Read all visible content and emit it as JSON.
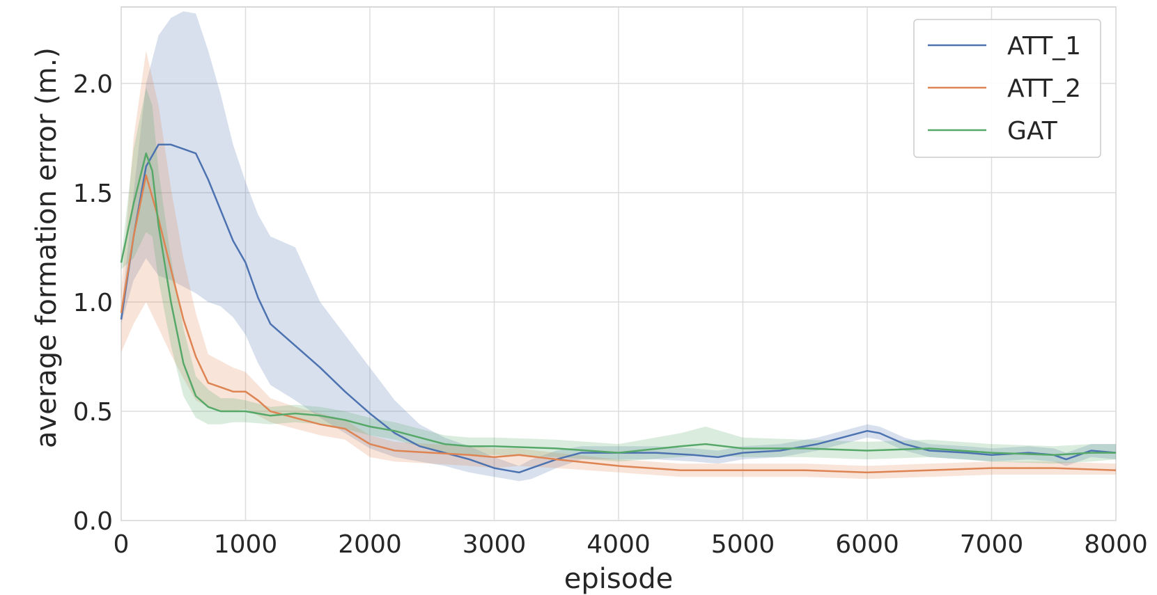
{
  "chart_data": {
    "type": "line",
    "title": "",
    "xlabel": "episode",
    "ylabel": "average formation error  (m.)",
    "xlim": [
      0,
      8000
    ],
    "ylim": [
      0,
      2.35
    ],
    "xticks": [
      0,
      1000,
      2000,
      3000,
      4000,
      5000,
      6000,
      7000,
      8000
    ],
    "xtick_labels": [
      "0",
      "1000",
      "2000",
      "3000",
      "4000",
      "5000",
      "6000",
      "7000",
      "8000"
    ],
    "yticks": [
      0.0,
      0.5,
      1.0,
      1.5,
      2.0
    ],
    "ytick_labels": [
      "0.0",
      "0.5",
      "1.0",
      "1.5",
      "2.0"
    ],
    "grid": true,
    "legend_position": "top-right",
    "series": [
      {
        "name": "ATT_1",
        "color": "#4c72b0",
        "x": [
          0,
          100,
          200,
          300,
          400,
          500,
          600,
          700,
          800,
          900,
          1000,
          1100,
          1200,
          1400,
          1600,
          1800,
          2000,
          2200,
          2400,
          2600,
          2800,
          3000,
          3100,
          3200,
          3300,
          3500,
          3700,
          4000,
          4300,
          4600,
          4800,
          5000,
          5300,
          5600,
          5800,
          6000,
          6100,
          6300,
          6500,
          6800,
          7000,
          7300,
          7500,
          7600,
          7700,
          7800,
          8000
        ],
        "y": [
          0.92,
          1.3,
          1.62,
          1.72,
          1.72,
          1.7,
          1.68,
          1.56,
          1.42,
          1.28,
          1.18,
          1.02,
          0.9,
          0.8,
          0.7,
          0.59,
          0.49,
          0.4,
          0.34,
          0.31,
          0.28,
          0.24,
          0.23,
          0.22,
          0.24,
          0.28,
          0.31,
          0.31,
          0.31,
          0.3,
          0.29,
          0.31,
          0.32,
          0.35,
          0.38,
          0.41,
          0.4,
          0.35,
          0.32,
          0.31,
          0.3,
          0.31,
          0.3,
          0.28,
          0.3,
          0.32,
          0.31
        ],
        "lower": [
          0.9,
          1.1,
          1.2,
          1.12,
          1.1,
          1.07,
          1.04,
          1.0,
          0.98,
          0.93,
          0.85,
          0.72,
          0.62,
          0.55,
          0.47,
          0.4,
          0.33,
          0.29,
          0.27,
          0.25,
          0.22,
          0.2,
          0.19,
          0.18,
          0.19,
          0.24,
          0.28,
          0.28,
          0.28,
          0.27,
          0.26,
          0.28,
          0.29,
          0.32,
          0.35,
          0.38,
          0.37,
          0.32,
          0.29,
          0.28,
          0.27,
          0.28,
          0.27,
          0.25,
          0.27,
          0.29,
          0.28
        ],
        "upper": [
          0.95,
          1.5,
          2.0,
          2.22,
          2.3,
          2.33,
          2.32,
          2.15,
          1.95,
          1.72,
          1.55,
          1.4,
          1.3,
          1.25,
          1.0,
          0.85,
          0.7,
          0.55,
          0.44,
          0.38,
          0.34,
          0.29,
          0.27,
          0.25,
          0.28,
          0.32,
          0.34,
          0.34,
          0.34,
          0.33,
          0.32,
          0.34,
          0.35,
          0.38,
          0.41,
          0.44,
          0.43,
          0.38,
          0.35,
          0.34,
          0.33,
          0.34,
          0.33,
          0.31,
          0.33,
          0.35,
          0.35
        ]
      },
      {
        "name": "ATT_2",
        "color": "#dd8452",
        "x": [
          0,
          100,
          200,
          300,
          400,
          500,
          600,
          700,
          800,
          900,
          1000,
          1100,
          1200,
          1400,
          1600,
          1800,
          2000,
          2200,
          2500,
          2800,
          3000,
          3200,
          3500,
          4000,
          4500,
          5000,
          5500,
          6000,
          6500,
          7000,
          7500,
          8000
        ],
        "y": [
          0.95,
          1.3,
          1.58,
          1.38,
          1.15,
          0.92,
          0.75,
          0.63,
          0.61,
          0.59,
          0.59,
          0.55,
          0.5,
          0.47,
          0.44,
          0.42,
          0.35,
          0.32,
          0.31,
          0.3,
          0.29,
          0.3,
          0.28,
          0.25,
          0.23,
          0.23,
          0.23,
          0.22,
          0.23,
          0.24,
          0.24,
          0.23
        ],
        "lower": [
          0.77,
          0.9,
          1.0,
          0.88,
          0.76,
          0.65,
          0.55,
          0.52,
          0.5,
          0.5,
          0.51,
          0.48,
          0.45,
          0.42,
          0.39,
          0.37,
          0.29,
          0.27,
          0.26,
          0.25,
          0.24,
          0.25,
          0.24,
          0.22,
          0.2,
          0.2,
          0.2,
          0.19,
          0.2,
          0.21,
          0.21,
          0.21
        ],
        "upper": [
          1.05,
          1.75,
          2.15,
          1.9,
          1.52,
          1.2,
          0.95,
          0.76,
          0.73,
          0.7,
          0.68,
          0.62,
          0.56,
          0.52,
          0.49,
          0.46,
          0.39,
          0.36,
          0.35,
          0.34,
          0.33,
          0.33,
          0.31,
          0.28,
          0.26,
          0.26,
          0.26,
          0.25,
          0.26,
          0.27,
          0.27,
          0.26
        ]
      },
      {
        "name": "GAT",
        "color": "#55a868",
        "x": [
          0,
          100,
          200,
          250,
          300,
          400,
          500,
          600,
          700,
          800,
          900,
          1000,
          1200,
          1400,
          1600,
          1800,
          2000,
          2200,
          2400,
          2600,
          2800,
          3000,
          3500,
          4000,
          4500,
          4700,
          5000,
          5500,
          6000,
          6500,
          7000,
          7500,
          7800,
          8000
        ],
        "y": [
          1.18,
          1.45,
          1.68,
          1.6,
          1.35,
          1.0,
          0.72,
          0.57,
          0.52,
          0.5,
          0.5,
          0.5,
          0.48,
          0.49,
          0.48,
          0.46,
          0.43,
          0.41,
          0.38,
          0.35,
          0.34,
          0.34,
          0.33,
          0.31,
          0.34,
          0.35,
          0.33,
          0.33,
          0.32,
          0.33,
          0.31,
          0.3,
          0.31,
          0.31
        ],
        "lower": [
          1.15,
          1.2,
          1.32,
          1.3,
          1.1,
          0.8,
          0.57,
          0.47,
          0.44,
          0.44,
          0.45,
          0.45,
          0.44,
          0.45,
          0.44,
          0.42,
          0.39,
          0.37,
          0.34,
          0.31,
          0.3,
          0.3,
          0.29,
          0.27,
          0.29,
          0.3,
          0.29,
          0.29,
          0.28,
          0.29,
          0.27,
          0.26,
          0.27,
          0.28
        ],
        "upper": [
          1.2,
          1.7,
          1.98,
          1.9,
          1.6,
          1.2,
          0.88,
          0.66,
          0.6,
          0.56,
          0.56,
          0.55,
          0.52,
          0.53,
          0.52,
          0.5,
          0.47,
          0.45,
          0.42,
          0.39,
          0.38,
          0.38,
          0.37,
          0.35,
          0.4,
          0.43,
          0.38,
          0.37,
          0.36,
          0.37,
          0.35,
          0.34,
          0.35,
          0.35
        ]
      }
    ]
  }
}
